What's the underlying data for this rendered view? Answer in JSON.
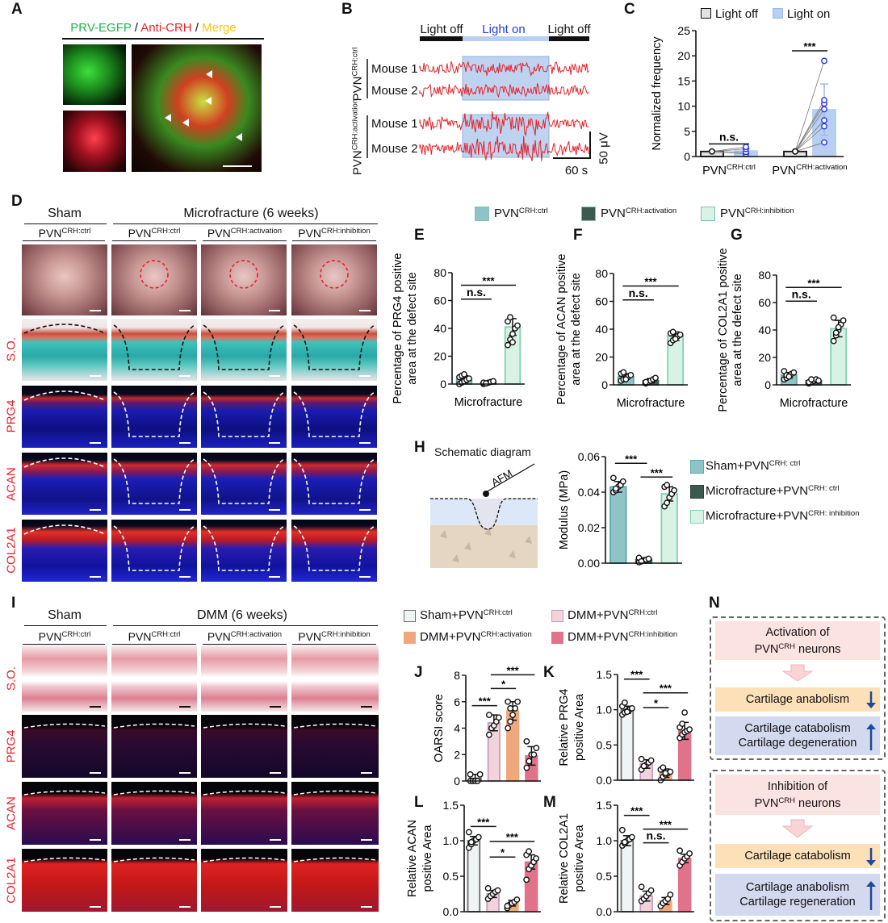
{
  "panel_labels": [
    "A",
    "B",
    "C",
    "D",
    "E",
    "F",
    "G",
    "H",
    "I",
    "J",
    "K",
    "L",
    "M",
    "N"
  ],
  "a": {
    "prv": "PRV-EGFP",
    "sep1": " / ",
    "crh": "Anti-CRH",
    "sep2": " / ",
    "merge": "Merge",
    "colors": {
      "prv": "#22b14c",
      "crh": "#e3242b",
      "merge": "#f5c518"
    }
  },
  "b": {
    "light_off_1": "Light off",
    "light_on": "Light on",
    "light_off_2": "Light off",
    "group1": {
      "base": "PVN",
      "sup": "CRH:ctrl"
    },
    "group2": {
      "base": "PVN",
      "sup": "CRH:activation"
    },
    "mouse1a": "Mouse 1",
    "mouse2a": "Mouse 2",
    "mouse1b": "Mouse 1",
    "mouse2b": "Mouse 2",
    "time_scale": "60 s",
    "amp_scale": "50 μV",
    "trace_color": "#e3242b",
    "light_color": "#a9c4ec"
  },
  "d": {
    "sham": "Sham",
    "micro": "Microfracture (6 weeks)",
    "cols": [
      {
        "base": "PVN",
        "sup": "CRH:ctrl"
      },
      {
        "base": "PVN",
        "sup": "CRH:ctrl"
      },
      {
        "base": "PVN",
        "sup": "CRH:activation"
      },
      {
        "base": "PVN",
        "sup": "CRH:inhibition"
      }
    ],
    "rows": [
      "S.O.",
      "PRG4",
      "ACAN",
      "COL2A1"
    ],
    "legend": [
      {
        "base": "PVN",
        "sup": "CRH:ctrl",
        "color": "#8fc4c6"
      },
      {
        "base": "PVN",
        "sup": "CRH:activation",
        "color": "#3d5a50"
      },
      {
        "base": "PVN",
        "sup": "CRH:inhibition",
        "color": "#d8f2e6"
      }
    ]
  },
  "h": {
    "schematic_title": "Schematic diagram",
    "afm": "AFM",
    "legend": [
      {
        "base": "Sham+PVN",
        "sup": "CRH: ctrl",
        "color": "#8fc4c6"
      },
      {
        "base": "Microfracture+PVN",
        "sup": "CRH: ctrl",
        "color": "#3d5a50"
      },
      {
        "base": "Microfracture+PVN",
        "sup": "CRH: inhibition",
        "color": "#d8f2e6"
      }
    ]
  },
  "i": {
    "sham": "Sham",
    "dmm": "DMM (6 weeks)",
    "cols": [
      {
        "base": "PVN",
        "sup": "CRH:ctrl"
      },
      {
        "base": "PVN",
        "sup": "CRH:ctrl"
      },
      {
        "base": "PVN",
        "sup": "CRH:activation"
      },
      {
        "base": "PVN",
        "sup": "CRH:inhibition"
      }
    ],
    "rows": [
      "S.O.",
      "PRG4",
      "ACAN",
      "COL2A1"
    ],
    "legend": [
      {
        "base": "Sham+PVN",
        "sup": "CRH:ctrl",
        "color": "#eef5f4"
      },
      {
        "base": "DMM+PVN",
        "sup": "CRH:ctrl",
        "color": "#f2d3dc"
      },
      {
        "base": "DMM+PVN",
        "sup": "CRH:activation",
        "color": "#eea87c"
      },
      {
        "base": "DMM+PVN",
        "sup": "CRH:inhibition",
        "color": "#e0728a"
      }
    ]
  },
  "n": {
    "box1": {
      "title1": "Activation of",
      "title2_base": "PVN",
      "title2_sup": "CRH",
      "title2_rest": " neurons",
      "mid": "Cartilage anabolism",
      "mid_arrow": "down",
      "low1": "Cartilage catabolism",
      "low2": "Cartilage degeneration",
      "low_arrow": "up"
    },
    "box2": {
      "title1": "Inhibition of",
      "title2_base": "PVN",
      "title2_sup": "CRH",
      "title2_rest": " neurons",
      "mid": "Cartilage catabolism",
      "mid_arrow": "down",
      "low1": "Cartilage anabolism",
      "low2": "Cartilage regeneration",
      "low_arrow": "up"
    },
    "colors": {
      "title": "#fbe3e1",
      "mid": "#fbe0b8",
      "low": "#d3d9ee",
      "arrow": "#1d4a9a"
    }
  },
  "chart_data": [
    {
      "id": "C",
      "type": "bar",
      "ylabel": [
        "Normalized frequency"
      ],
      "xlabel": "",
      "ylim": [
        0,
        25
      ],
      "yticks": [
        "0",
        "5",
        "10",
        "15",
        "20",
        "25"
      ],
      "categories": [
        {
          "base": "PVN",
          "sup": "CRH:ctrl"
        },
        {
          "base": "PVN",
          "sup": "CRH:activation"
        }
      ],
      "legend": [
        "Light off",
        "Light on"
      ],
      "series": [
        {
          "name": "Light off",
          "values": [
            1.0,
            1.0
          ],
          "sd": [
            0,
            0
          ],
          "color": "#e2e2e2",
          "stroke": "#111",
          "point_color": "#111",
          "points": [
            [
              1,
              1,
              1,
              1
            ],
            [
              1,
              1,
              1,
              1,
              1,
              1,
              1
            ]
          ]
        },
        {
          "name": "Light on",
          "values": [
            1.1,
            9.3
          ],
          "sd": [
            0.5,
            5.1
          ],
          "color": "#b9cff1",
          "stroke": "#b9cff1",
          "point_color": "#2233ee",
          "points": [
            [
              0.5,
              0.9,
              1.5,
              1.9
            ],
            [
              2.8,
              6.0,
              7.2,
              9.4,
              10.5,
              11.2,
              19.0
            ]
          ]
        }
      ],
      "sig": [
        {
          "from": 0,
          "to": 1,
          "label": "n.s.",
          "y": 2.5
        },
        {
          "from": 2,
          "to": 3,
          "label": "***",
          "y": 21
        }
      ]
    },
    {
      "id": "E",
      "type": "bar",
      "ylabel": [
        "Percentage of PRG4 positive",
        "area at the defect site"
      ],
      "xlabel": "Microfracture",
      "ylim": [
        0,
        80
      ],
      "yticks": [
        "0",
        "20",
        "40",
        "60",
        "80"
      ],
      "values": [
        3.5,
        1.0,
        41
      ],
      "sd": [
        2.5,
        1,
        6
      ],
      "colors": [
        "#8fc4c6",
        "#3d5a50",
        "#d8f2e6"
      ],
      "strokes": [
        "#5fa8ab",
        "#3d5a50",
        "#7fd2b0"
      ],
      "points": [
        [
          0,
          1,
          2,
          3,
          4,
          5,
          6,
          7
        ],
        [
          0,
          0.5,
          1,
          1.5,
          2,
          1,
          0.5
        ],
        [
          28,
          32,
          36,
          40,
          42,
          45,
          48,
          30
        ]
      ],
      "sig": [
        {
          "from": 0,
          "to": 1,
          "label": "n.s.",
          "y": 61
        },
        {
          "from": 0,
          "to": 2,
          "label": "***",
          "y": 71
        }
      ]
    },
    {
      "id": "F",
      "type": "bar",
      "ylabel": [
        "Percentage of ACAN positive",
        "area at the defect site"
      ],
      "xlabel": "Microfracture",
      "ylim": [
        0,
        80
      ],
      "yticks": [
        "0",
        "20",
        "40",
        "60",
        "80"
      ],
      "values": [
        6,
        3,
        35
      ],
      "sd": [
        2,
        1.5,
        3
      ],
      "colors": [
        "#8fc4c6",
        "#3d5a50",
        "#d8f2e6"
      ],
      "strokes": [
        "#5fa8ab",
        "#3d5a50",
        "#7fd2b0"
      ],
      "points": [
        [
          3,
          4,
          5,
          6,
          7,
          8,
          9,
          4
        ],
        [
          1,
          2,
          3,
          4,
          5,
          2
        ],
        [
          30,
          32,
          34,
          35,
          36,
          37,
          38,
          33
        ]
      ],
      "sig": [
        {
          "from": 0,
          "to": 1,
          "label": "n.s.",
          "y": 61
        },
        {
          "from": 0,
          "to": 2,
          "label": "***",
          "y": 71
        }
      ]
    },
    {
      "id": "G",
      "type": "bar",
      "ylabel": [
        "Percentage of COL2A1 positive",
        "area at the defect site"
      ],
      "xlabel": "Microfracture",
      "ylim": [
        0,
        80
      ],
      "yticks": [
        "0",
        "20",
        "40",
        "60",
        "80"
      ],
      "values": [
        7,
        3,
        41
      ],
      "sd": [
        2,
        1.2,
        6
      ],
      "colors": [
        "#8fc4c6",
        "#3d5a50",
        "#d8f2e6"
      ],
      "strokes": [
        "#5fa8ab",
        "#3d5a50",
        "#7fd2b0"
      ],
      "points": [
        [
          4,
          5,
          6,
          8,
          9,
          10,
          7,
          6
        ],
        [
          1,
          2,
          3,
          4,
          3,
          2,
          4
        ],
        [
          32,
          36,
          40,
          44,
          47,
          49,
          38,
          42
        ]
      ],
      "sig": [
        {
          "from": 0,
          "to": 1,
          "label": "n.s.",
          "y": 61
        },
        {
          "from": 0,
          "to": 2,
          "label": "***",
          "y": 71
        }
      ]
    },
    {
      "id": "H",
      "type": "bar",
      "ylabel": [
        "Modulus (MPa)"
      ],
      "xlabel": "",
      "ylim": [
        0,
        0.06
      ],
      "yticks": [
        "0.00",
        "0.02",
        "0.04",
        "0.06"
      ],
      "values": [
        0.043,
        0.002,
        0.039
      ],
      "sd": [
        0.003,
        0.001,
        0.004
      ],
      "colors": [
        "#8fc4c6",
        "#3d5a50",
        "#d8f2e6"
      ],
      "strokes": [
        "#5fa8ab",
        "#3d5a50",
        "#7fd2b0"
      ],
      "points": [
        [
          0.04,
          0.041,
          0.043,
          0.044,
          0.046,
          0.048,
          0.042
        ],
        [
          0.0005,
          0.001,
          0.0015,
          0.002,
          0.0025,
          0.003,
          0.001
        ],
        [
          0.032,
          0.034,
          0.037,
          0.039,
          0.041,
          0.043,
          0.044
        ]
      ],
      "sig": [
        {
          "from": 0,
          "to": 1,
          "label": "***",
          "y": 0.0555
        },
        {
          "from": 1,
          "to": 2,
          "label": "***",
          "y": 0.0485
        }
      ]
    },
    {
      "id": "J",
      "type": "bar",
      "ylabel": [
        "OARSI score"
      ],
      "xlabel": "",
      "ylim": [
        0,
        8
      ],
      "yticks": [
        "0",
        "2",
        "4",
        "6",
        "8"
      ],
      "values": [
        0.2,
        4.4,
        5.3,
        1.9
      ],
      "sd": [
        0.3,
        0.6,
        0.7,
        0.7
      ],
      "colors": [
        "#eef5f4",
        "#f2d3dc",
        "#eea87c",
        "#e0728a"
      ],
      "strokes": [
        "#6b6b6b",
        "#c99ac0",
        "#eea87c",
        "#e0728a"
      ],
      "points": [
        [
          0,
          0,
          0,
          0,
          0.5,
          0.5
        ],
        [
          3.5,
          4,
          4.2,
          4.5,
          4.8,
          5
        ],
        [
          4,
          4.5,
          5,
          5.5,
          6,
          6,
          5.5
        ],
        [
          1,
          1.5,
          2,
          2,
          2.5,
          3
        ]
      ],
      "sig": [
        {
          "from": 0,
          "to": 1,
          "label": "***",
          "y": 5.7
        },
        {
          "from": 1,
          "to": 2,
          "label": "*",
          "y": 7.0
        },
        {
          "from": 1,
          "to": 3,
          "label": "***",
          "y": 8.0
        }
      ]
    },
    {
      "id": "K",
      "type": "bar",
      "ylabel": [
        "Relative PRG4",
        "positive Area"
      ],
      "xlabel": "",
      "ylim": [
        0,
        1.5
      ],
      "yticks": [
        "0.0",
        "0.5",
        "1.0",
        "1.5"
      ],
      "values": [
        1.0,
        0.23,
        0.1,
        0.7
      ],
      "sd": [
        0.05,
        0.06,
        0.06,
        0.12
      ],
      "colors": [
        "#eef5f4",
        "#f2d3dc",
        "#eea87c",
        "#e0728a"
      ],
      "strokes": [
        "#6b6b6b",
        "#c99ac0",
        "#eea87c",
        "#e0728a"
      ],
      "points": [
        [
          0.93,
          0.96,
          0.98,
          1.0,
          1.02,
          1.05,
          1.1,
          0.97
        ],
        [
          0.15,
          0.2,
          0.22,
          0.25,
          0.28,
          0.3,
          0.2
        ],
        [
          0.0,
          0.05,
          0.08,
          0.1,
          0.12,
          0.15,
          0.18,
          0.1
        ],
        [
          0.6,
          0.65,
          0.68,
          0.7,
          0.72,
          0.75,
          0.8,
          0.96
        ]
      ],
      "sig": [
        {
          "from": 0,
          "to": 1,
          "label": "***",
          "y": 1.43
        },
        {
          "from": 1,
          "to": 3,
          "label": "***",
          "y": 1.24
        },
        {
          "from": 1,
          "to": 2,
          "label": "*",
          "y": 1.03
        }
      ]
    },
    {
      "id": "L",
      "type": "bar",
      "ylabel": [
        "Relative ACAN",
        "positive Area"
      ],
      "xlabel": "",
      "ylim": [
        0,
        1.5
      ],
      "yticks": [
        "0.0",
        "0.5",
        "1.0",
        "1.5"
      ],
      "values": [
        1.0,
        0.25,
        0.12,
        0.7
      ],
      "sd": [
        0.06,
        0.05,
        0.04,
        0.1
      ],
      "colors": [
        "#eef5f4",
        "#f2d3dc",
        "#eea87c",
        "#e0728a"
      ],
      "strokes": [
        "#6b6b6b",
        "#c99ac0",
        "#eea87c",
        "#e0728a"
      ],
      "points": [
        [
          0.9,
          0.95,
          1.0,
          1.02,
          1.05,
          1.12,
          0.98
        ],
        [
          0.18,
          0.22,
          0.25,
          0.28,
          0.3,
          0.33
        ],
        [
          0.05,
          0.1,
          0.12,
          0.14,
          0.17,
          0.08
        ],
        [
          0.45,
          0.6,
          0.65,
          0.7,
          0.75,
          0.8,
          0.85
        ]
      ],
      "sig": [
        {
          "from": 0,
          "to": 1,
          "label": "***",
          "y": 1.2
        },
        {
          "from": 1,
          "to": 3,
          "label": "***",
          "y": 0.99
        },
        {
          "from": 1,
          "to": 2,
          "label": "*",
          "y": 0.77
        }
      ]
    },
    {
      "id": "M",
      "type": "bar",
      "ylabel": [
        "Relative COL2A1",
        "positive Area"
      ],
      "xlabel": "",
      "ylim": [
        0,
        1.5
      ],
      "yticks": [
        "0.0",
        "0.5",
        "1.0",
        "1.5"
      ],
      "values": [
        1.0,
        0.22,
        0.15,
        0.75
      ],
      "sd": [
        0.07,
        0.07,
        0.05,
        0.06
      ],
      "colors": [
        "#eef5f4",
        "#f2d3dc",
        "#eea87c",
        "#e0728a"
      ],
      "strokes": [
        "#6b6b6b",
        "#c99ac0",
        "#eea87c",
        "#e0728a"
      ],
      "points": [
        [
          0.93,
          0.96,
          1.0,
          1.02,
          1.05,
          1.15,
          0.98
        ],
        [
          0.15,
          0.18,
          0.22,
          0.26,
          0.3,
          0.35
        ],
        [
          0.08,
          0.12,
          0.15,
          0.18,
          0.24
        ],
        [
          0.65,
          0.7,
          0.75,
          0.78,
          0.82,
          0.86
        ]
      ],
      "sig": [
        {
          "from": 0,
          "to": 1,
          "label": "***",
          "y": 1.23
        },
        {
          "from": 1,
          "to": 3,
          "label": "***",
          "y": 1.03
        },
        {
          "from": 1,
          "to": 2,
          "label": "n.s.",
          "y": 0.97
        }
      ]
    }
  ]
}
